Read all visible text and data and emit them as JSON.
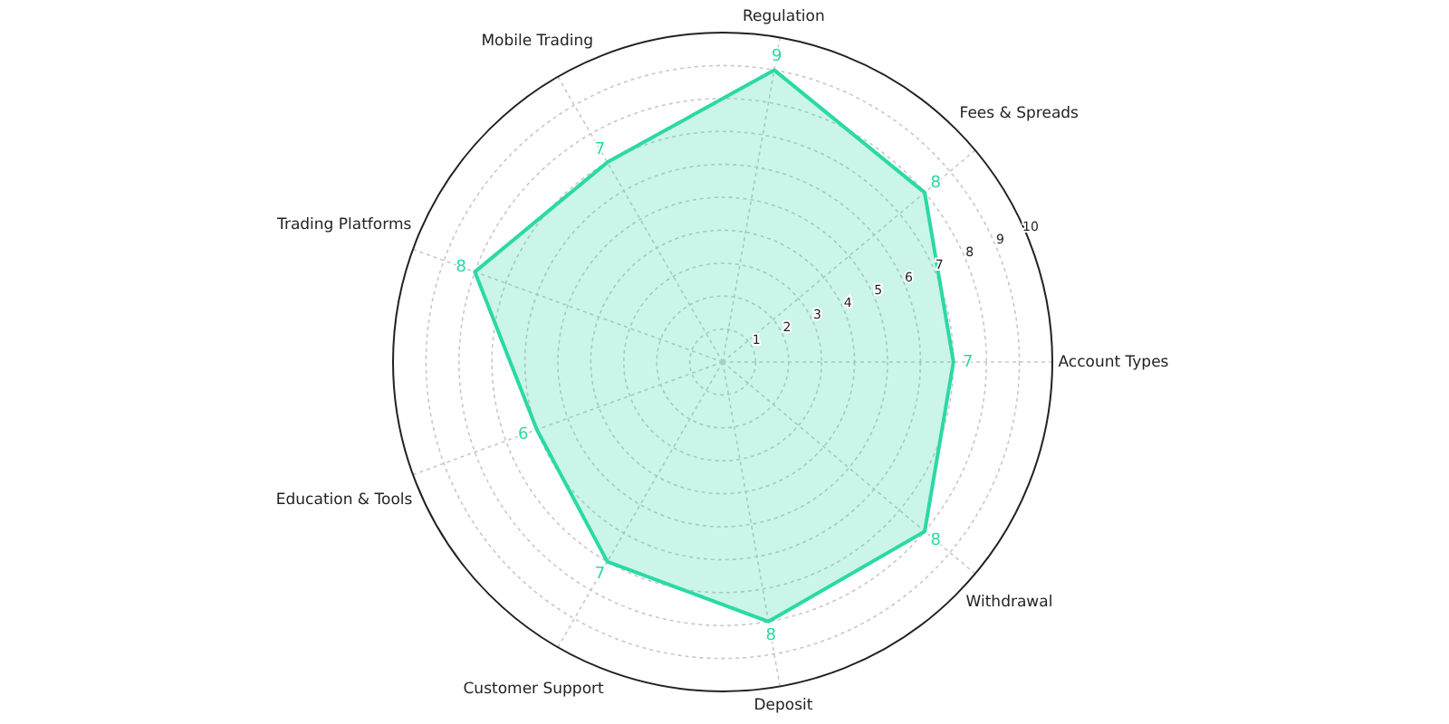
{
  "chart_data": {
    "type": "radar",
    "categories": [
      "Regulation",
      "Fees & Spreads",
      "Account Types",
      "Withdrawal",
      "Deposit",
      "Customer Support",
      "Education & Tools",
      "Trading Platforms",
      "Mobile Trading"
    ],
    "series": [
      {
        "color": "#2bd9a5",
        "values": [
          9,
          8,
          7,
          8,
          8,
          7,
          6,
          8,
          7
        ]
      }
    ],
    "ylim": [
      0,
      10
    ],
    "yticks": [
      1,
      2,
      3,
      4,
      5,
      6,
      7,
      8,
      9,
      10
    ],
    "grid": true,
    "data_labels": true
  }
}
